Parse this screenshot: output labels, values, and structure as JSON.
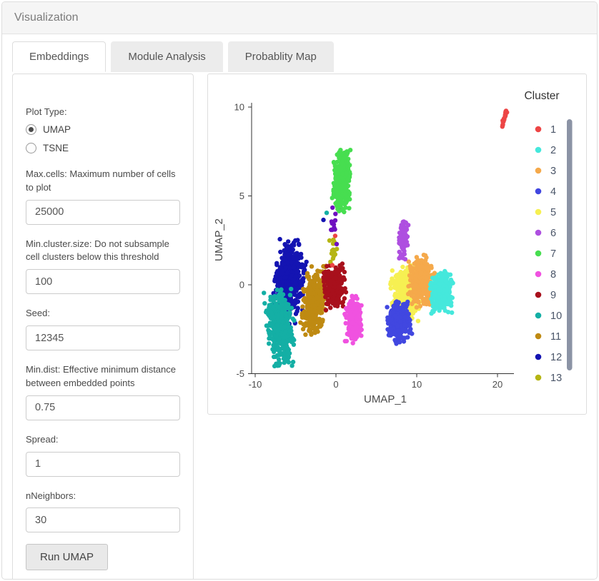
{
  "header": {
    "title": "Visualization"
  },
  "tabs": [
    {
      "label": "Embeddings",
      "active": true
    },
    {
      "label": "Module Analysis",
      "active": false
    },
    {
      "label": "Probablity Map",
      "active": false
    }
  ],
  "form": {
    "plot_type": {
      "label": "Plot Type:",
      "options": [
        {
          "label": "UMAP",
          "selected": true
        },
        {
          "label": "TSNE",
          "selected": false
        }
      ]
    },
    "max_cells": {
      "label": "Max.cells: Maximum number of cells to plot",
      "value": "25000"
    },
    "min_cluster": {
      "label": "Min.cluster.size: Do not subsample cell clusters below this threshold",
      "value": "100"
    },
    "seed": {
      "label": "Seed:",
      "value": "12345"
    },
    "min_dist": {
      "label": "Min.dist: Effective minimum distance between embedded points",
      "value": "0.75"
    },
    "spread": {
      "label": "Spread:",
      "value": "1"
    },
    "nneighbors": {
      "label": "nNeighbors:",
      "value": "30"
    },
    "run_button": "Run UMAP"
  },
  "chart_data": {
    "type": "scatter",
    "title": "",
    "xlabel": "UMAP_1",
    "ylabel": "UMAP_2",
    "x_ticks": [
      -10,
      0,
      10,
      20
    ],
    "y_ticks": [
      -5,
      0,
      5,
      10
    ],
    "xlim": [
      -10.5,
      22.5
    ],
    "ylim": [
      -5.2,
      10.5
    ],
    "grid": false,
    "legend_title": "Cluster",
    "legend_position": "right",
    "point_radius_px": 3.2,
    "scrollbar_color": "#8b93a5",
    "series": [
      {
        "name": "1",
        "color": "#ed4545",
        "center": [
          20.85,
          9.35
        ],
        "sd": [
          0.09,
          0.27
        ],
        "slant": 0.5,
        "n": 22,
        "z": 14
      },
      {
        "name": "2",
        "color": "#45e8dc",
        "center": [
          13.1,
          -0.45
        ],
        "sd": [
          0.65,
          0.55
        ],
        "slant": 0,
        "n": 270,
        "z": 11
      },
      {
        "name": "3",
        "color": "#f5a94b",
        "center": [
          10.6,
          0.2
        ],
        "sd": [
          0.75,
          0.65
        ],
        "slant": 0,
        "n": 310,
        "z": 10
      },
      {
        "name": "4",
        "color": "#4147e0",
        "center": [
          7.8,
          -2.1
        ],
        "sd": [
          0.7,
          0.55
        ],
        "slant": 0,
        "n": 270,
        "z": 12
      },
      {
        "name": "5",
        "color": "#f6f052",
        "center": [
          8.6,
          -0.45
        ],
        "sd": [
          0.8,
          0.7
        ],
        "slant": 0,
        "n": 400,
        "z": 9
      },
      {
        "name": "6",
        "color": "#ae4fe0",
        "center": [
          8.3,
          2.55
        ],
        "sd": [
          0.28,
          0.6
        ],
        "slant": 0.15,
        "n": 85,
        "z": 13
      },
      {
        "name": "7",
        "color": "#47de50",
        "center": [
          0.75,
          5.85
        ],
        "sd": [
          0.5,
          0.8
        ],
        "slant": 0.1,
        "n": 450,
        "z": 8
      },
      {
        "name": "8",
        "color": "#f052e0",
        "center": [
          2.2,
          -2.0
        ],
        "sd": [
          0.5,
          0.7
        ],
        "slant": 0,
        "n": 210,
        "z": 5
      },
      {
        "name": "9",
        "color": "#a8101c",
        "center": [
          -0.2,
          -0.1
        ],
        "sd": [
          0.65,
          0.6
        ],
        "slant": 0,
        "n": 240,
        "z": 4
      },
      {
        "name": "10",
        "color": "#14afa5",
        "center": [
          -6.9,
          -2.4
        ],
        "sd": [
          0.8,
          0.95
        ],
        "slant": -0.12,
        "n": 470,
        "z": 2
      },
      {
        "name": "11",
        "color": "#bf8a12",
        "center": [
          -2.7,
          -1.0
        ],
        "sd": [
          0.7,
          0.9
        ],
        "slant": 0.2,
        "n": 340,
        "z": 3
      },
      {
        "name": "12",
        "color": "#1414b2",
        "center": [
          -5.8,
          0.2
        ],
        "sd": [
          0.85,
          1.05
        ],
        "slant": 0.18,
        "n": 480,
        "z": 1
      },
      {
        "name": "13",
        "color": "#b5b513",
        "center": [
          -0.35,
          1.85
        ],
        "sd": [
          0.22,
          0.4
        ],
        "slant": 0,
        "n": 15,
        "z": 6
      },
      {
        "name": "trail",
        "legend": false,
        "color": "#6e10c0",
        "center": [
          -0.12,
          3.25
        ],
        "sd": [
          0.3,
          0.6
        ],
        "slant": 0,
        "n": 13,
        "z": 7
      }
    ],
    "outliers": [
      {
        "x": -1.15,
        "y": 4.05,
        "color": "#14afa5"
      },
      {
        "x": -1.55,
        "y": 3.65,
        "color": "#1414b2"
      },
      {
        "x": -0.1,
        "y": 2.75,
        "color": "#ed4545"
      },
      {
        "x": -0.45,
        "y": 1.1,
        "color": "#ed4545"
      }
    ]
  }
}
